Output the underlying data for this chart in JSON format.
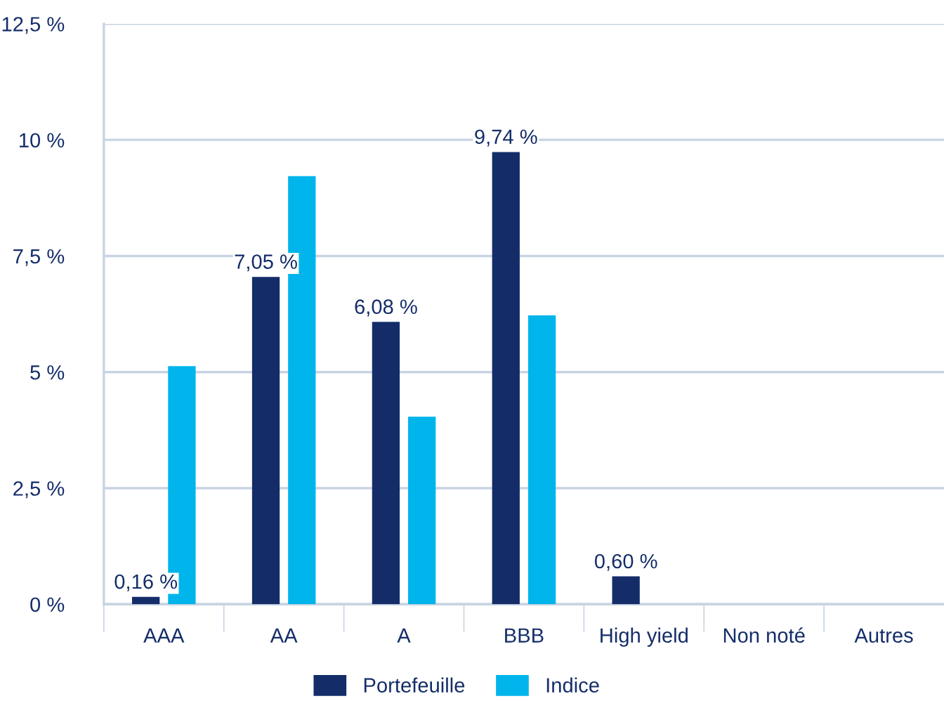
{
  "chart_data": {
    "type": "bar",
    "categories": [
      "AAA",
      "AA",
      "A",
      "BBB",
      "High yield",
      "Non noté",
      "Autres"
    ],
    "series": [
      {
        "name": "Portefeuille",
        "color": "#142d69",
        "values": [
          0.16,
          7.05,
          6.08,
          9.74,
          0.6,
          null,
          null
        ],
        "value_labels": [
          "0,16 %",
          "7,05 %",
          "6,08 %",
          "9,74 %",
          "0,60 %",
          null,
          null
        ]
      },
      {
        "name": "Indice",
        "color": "#00b5eb",
        "values": [
          5.13,
          9.22,
          4.04,
          6.22,
          null,
          null,
          null
        ]
      }
    ],
    "ylim": [
      0,
      12.5
    ],
    "yticks": [
      {
        "value": 0,
        "label": "0 %"
      },
      {
        "value": 2.5,
        "label": "2,5 %"
      },
      {
        "value": 5,
        "label": "5 %"
      },
      {
        "value": 7.5,
        "label": "7,5 %"
      },
      {
        "value": 10,
        "label": "10 %"
      },
      {
        "value": 12.5,
        "label": "12,5 %"
      }
    ],
    "grid": "y",
    "legend": "bottom"
  }
}
